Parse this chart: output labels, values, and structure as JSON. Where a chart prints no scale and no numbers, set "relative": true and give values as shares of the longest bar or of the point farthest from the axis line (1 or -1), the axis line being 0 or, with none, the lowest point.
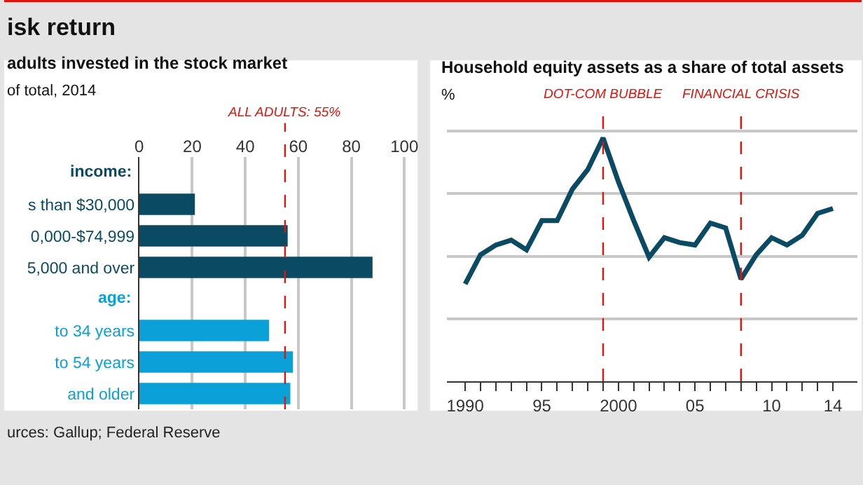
{
  "chart_data": [
    {
      "type": "bar",
      "orientation": "horizontal",
      "title": "adults invested in the stock market",
      "subtitle": "of total, 2014",
      "annotations": [
        "isk return",
        "urces: Gallup; Federal Reserve",
        "income:",
        "age:"
      ],
      "categories": [
        null,
        "s than $30,000",
        "0,000-$74,999",
        "5,000 and over",
        null,
        "to 34 years",
        "to 54 years",
        "and older"
      ],
      "values": [
        null,
        21,
        56,
        88,
        null,
        49,
        58,
        57
      ],
      "colors": [
        "#0b4a63",
        "#0b4a63",
        "#0b4a63",
        "#0b4a63",
        "#0ba1d8",
        "#0ba1d8",
        "#0ba1d8",
        "#0ba1d8"
      ],
      "xlim": [
        0,
        105
      ],
      "xticks": [
        0,
        20,
        40,
        60,
        80,
        100
      ],
      "grid": "x",
      "ref_lines": [
        {
          "axis": "x",
          "value": 55,
          "label": "ALL ADULTS: 55%",
          "color": "#e3120b",
          "line_style": "dashed"
        }
      ]
    },
    {
      "type": "line",
      "title": "Household equity assets as a share of total assets",
      "ylabel": "%",
      "relative": true,
      "x": [
        1990,
        1991,
        1992,
        1993,
        1994,
        1995,
        1996,
        1997,
        1998,
        1999,
        2000,
        2001,
        2002,
        2003,
        2004,
        2005,
        2006,
        2007,
        2008,
        2009,
        2010,
        2011,
        2012,
        2013,
        2014
      ],
      "series": [
        {
          "color": "#0b4a63",
          "values": [
            0.4,
            0.52,
            0.56,
            0.58,
            0.54,
            0.66,
            0.66,
            0.79,
            0.87,
            1.0,
            0.82,
            0.66,
            0.51,
            0.59,
            0.57,
            0.56,
            0.65,
            0.63,
            0.42,
            0.52,
            0.59,
            0.56,
            0.6,
            0.69,
            0.71
          ]
        }
      ],
      "xlim": [
        1988.8,
        2015.6
      ],
      "xticks": [
        {
          "value": 1990,
          "label": "1990"
        },
        {
          "value": 1991,
          "label": null
        },
        {
          "value": 1992,
          "label": null
        },
        {
          "value": 1993,
          "label": null
        },
        {
          "value": 1994,
          "label": null
        },
        {
          "value": 1995,
          "label": "95"
        },
        {
          "value": 1996,
          "label": null
        },
        {
          "value": 1997,
          "label": null
        },
        {
          "value": 1998,
          "label": null
        },
        {
          "value": 1999,
          "label": null
        },
        {
          "value": 2000,
          "label": "2000"
        },
        {
          "value": 2001,
          "label": null
        },
        {
          "value": 2002,
          "label": null
        },
        {
          "value": 2003,
          "label": null
        },
        {
          "value": 2004,
          "label": null
        },
        {
          "value": 2005,
          "label": "05"
        },
        {
          "value": 2006,
          "label": null
        },
        {
          "value": 2007,
          "label": null
        },
        {
          "value": 2008,
          "label": null
        },
        {
          "value": 2009,
          "label": null
        },
        {
          "value": 2010,
          "label": "10"
        },
        {
          "value": 2011,
          "label": null
        },
        {
          "value": 2012,
          "label": null
        },
        {
          "value": 2013,
          "label": null
        },
        {
          "value": 2014,
          "label": "14"
        }
      ],
      "grid": "y",
      "marker": "none",
      "line_style": "solid",
      "ref_lines": [
        {
          "axis": "x",
          "value": 1999,
          "label": "DOT-COM BUBBLE",
          "color": "#e3120b",
          "line_style": "dashed"
        },
        {
          "axis": "x",
          "value": 2008,
          "label": "FINANCIAL CRISIS",
          "color": "#e3120b",
          "line_style": "dashed"
        }
      ]
    }
  ]
}
